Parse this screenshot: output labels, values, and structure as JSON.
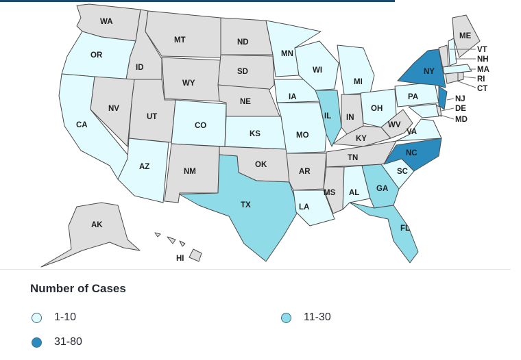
{
  "legend": {
    "title": "Number of Cases",
    "items": [
      {
        "key": "c1",
        "label": "1-10",
        "color": "#e2fbfe"
      },
      {
        "key": "c2",
        "label": "11-30",
        "color": "#8fdbe8"
      },
      {
        "key": "c3",
        "label": "31-80",
        "color": "#2b8bbf"
      }
    ],
    "no_data_color": "#dedede"
  },
  "states": [
    {
      "abbr": "WA",
      "category": "none"
    },
    {
      "abbr": "OR",
      "category": "c1"
    },
    {
      "abbr": "CA",
      "category": "c1"
    },
    {
      "abbr": "ID",
      "category": "none"
    },
    {
      "abbr": "NV",
      "category": "none"
    },
    {
      "abbr": "MT",
      "category": "none"
    },
    {
      "abbr": "WY",
      "category": "none"
    },
    {
      "abbr": "UT",
      "category": "none"
    },
    {
      "abbr": "AZ",
      "category": "c1"
    },
    {
      "abbr": "CO",
      "category": "c1"
    },
    {
      "abbr": "NM",
      "category": "none"
    },
    {
      "abbr": "ND",
      "category": "none"
    },
    {
      "abbr": "SD",
      "category": "none"
    },
    {
      "abbr": "NE",
      "category": "none"
    },
    {
      "abbr": "KS",
      "category": "c1"
    },
    {
      "abbr": "OK",
      "category": "none"
    },
    {
      "abbr": "TX",
      "category": "c2"
    },
    {
      "abbr": "MN",
      "category": "c1"
    },
    {
      "abbr": "IA",
      "category": "c1"
    },
    {
      "abbr": "MO",
      "category": "c1"
    },
    {
      "abbr": "AR",
      "category": "none"
    },
    {
      "abbr": "LA",
      "category": "c1"
    },
    {
      "abbr": "WI",
      "category": "c1"
    },
    {
      "abbr": "IL",
      "category": "c2"
    },
    {
      "abbr": "MI",
      "category": "c1"
    },
    {
      "abbr": "IN",
      "category": "none"
    },
    {
      "abbr": "OH",
      "category": "c1"
    },
    {
      "abbr": "KY",
      "category": "none"
    },
    {
      "abbr": "TN",
      "category": "none"
    },
    {
      "abbr": "MS",
      "category": "none"
    },
    {
      "abbr": "AL",
      "category": "c1"
    },
    {
      "abbr": "GA",
      "category": "c2"
    },
    {
      "abbr": "FL",
      "category": "c2"
    },
    {
      "abbr": "SC",
      "category": "c1"
    },
    {
      "abbr": "NC",
      "category": "c3"
    },
    {
      "abbr": "VA",
      "category": "c1"
    },
    {
      "abbr": "WV",
      "category": "none"
    },
    {
      "abbr": "PA",
      "category": "c1"
    },
    {
      "abbr": "NY",
      "category": "c3"
    },
    {
      "abbr": "VT",
      "category": "none"
    },
    {
      "abbr": "NH",
      "category": "c1"
    },
    {
      "abbr": "ME",
      "category": "none"
    },
    {
      "abbr": "MA",
      "category": "c1"
    },
    {
      "abbr": "RI",
      "category": "none"
    },
    {
      "abbr": "CT",
      "category": "none"
    },
    {
      "abbr": "NJ",
      "category": "c3"
    },
    {
      "abbr": "DE",
      "category": "none"
    },
    {
      "abbr": "MD",
      "category": "c1"
    },
    {
      "abbr": "AK",
      "category": "none"
    },
    {
      "abbr": "HI",
      "category": "none"
    }
  ]
}
